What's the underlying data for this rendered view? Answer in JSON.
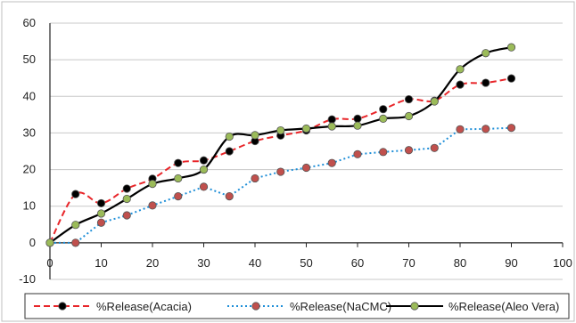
{
  "chart_data": {
    "type": "line",
    "title": "",
    "xlabel": "",
    "ylabel": "",
    "xlim": [
      0,
      100
    ],
    "ylim": [
      -10,
      60
    ],
    "x_ticks": [
      0,
      10,
      20,
      30,
      40,
      50,
      60,
      70,
      80,
      90,
      100
    ],
    "y_ticks": [
      -10,
      0,
      10,
      20,
      30,
      40,
      50,
      60
    ],
    "x": [
      0,
      5,
      10,
      15,
      20,
      25,
      30,
      35,
      40,
      45,
      50,
      55,
      60,
      65,
      70,
      75,
      80,
      85,
      90
    ],
    "grid": "horizontal",
    "legend_position": "bottom",
    "series": [
      {
        "name": "%Release(Acacia)",
        "color": "#e8262a",
        "marker_color": "#000000",
        "line_style": "dashed",
        "smooth": true,
        "values": [
          0,
          13.3,
          10.8,
          14.8,
          17.5,
          21.8,
          22.5,
          25,
          27.8,
          29.3,
          30.7,
          33.7,
          33.9,
          36.5,
          39.2,
          38.8,
          43.2,
          43.7,
          44.9
        ]
      },
      {
        "name": "%Release(NaCMC)",
        "color": "#1f8fd8",
        "marker_color": "#c0504d",
        "line_style": "dotted",
        "smooth": false,
        "values": [
          0,
          0,
          5.5,
          7.5,
          10.2,
          12.7,
          15.3,
          12.7,
          17.6,
          19.4,
          20.5,
          21.8,
          24.2,
          24.8,
          25.3,
          25.9,
          31,
          31.1,
          31.4
        ]
      },
      {
        "name": "%Release(Aleo Vera)",
        "color": "#000000",
        "marker_color": "#9bbb59",
        "line_style": "solid",
        "smooth": true,
        "values": [
          0,
          4.9,
          8,
          12,
          16.1,
          17.6,
          20,
          29,
          29.4,
          30.7,
          31.2,
          31.8,
          32,
          33.9,
          34.6,
          38.6,
          47.4,
          51.8,
          53.4
        ]
      }
    ]
  }
}
